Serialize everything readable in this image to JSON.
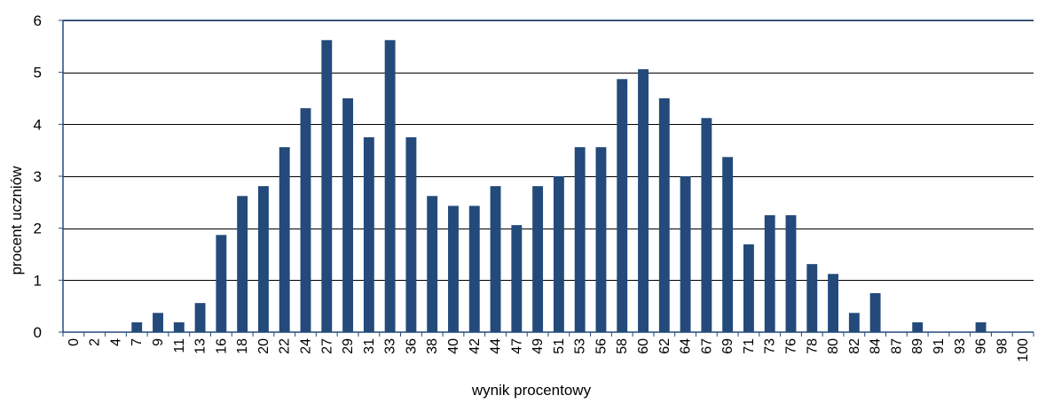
{
  "chart_data": {
    "type": "bar",
    "title": "",
    "xlabel": "wynik procentowy",
    "ylabel": "procent uczniów",
    "ylim": [
      0,
      6
    ],
    "yticks": [
      0,
      1,
      2,
      3,
      4,
      5,
      6
    ],
    "grid": true,
    "legend": "none",
    "categories": [
      "0",
      "2",
      "4",
      "7",
      "9",
      "11",
      "13",
      "16",
      "18",
      "20",
      "22",
      "24",
      "27",
      "29",
      "31",
      "33",
      "36",
      "38",
      "40",
      "42",
      "44",
      "47",
      "49",
      "51",
      "53",
      "56",
      "58",
      "60",
      "62",
      "64",
      "67",
      "69",
      "71",
      "73",
      "76",
      "78",
      "80",
      "82",
      "84",
      "87",
      "89",
      "91",
      "93",
      "96",
      "98",
      "100"
    ],
    "values": [
      0,
      0,
      0,
      0.19,
      0.37,
      0.19,
      0.56,
      1.87,
      2.62,
      2.81,
      3.56,
      4.31,
      5.62,
      4.5,
      3.75,
      5.62,
      3.75,
      2.62,
      2.43,
      2.43,
      2.81,
      2.06,
      2.81,
      3.0,
      3.56,
      3.56,
      4.87,
      5.06,
      4.5,
      3.0,
      4.12,
      3.37,
      1.69,
      2.25,
      2.25,
      1.31,
      1.12,
      0.37,
      0.75,
      0,
      0.19,
      0,
      0,
      0.19,
      0,
      0
    ],
    "colors": {
      "bar": "#234a7a",
      "axis": "#234a7a",
      "grid": "#000000"
    }
  }
}
